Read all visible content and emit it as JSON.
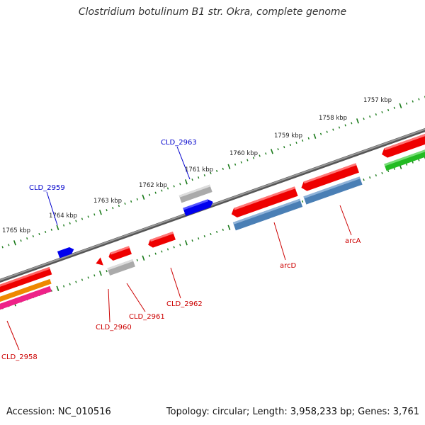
{
  "title": "Clostridium botulinum B1 str. Okra, complete genome",
  "footer": {
    "accession": "Accession: NC_010516",
    "topology": "Topology: circular; Length: 3,958,233 bp; Genes: 3,761"
  },
  "colors": {
    "backbone": "#7a7a7a",
    "tick": "#1a7a1a",
    "tick_label": "#222222",
    "forward_gene_label": "#0000cc",
    "reverse_gene_label": "#cc0000",
    "red": "#ee0000",
    "blue": "#0000ee",
    "grey": "#aaaaaa",
    "steelblue": "#4a7fb5",
    "green": "#22bb22",
    "orange": "#ee8800",
    "pink": "#ee2288"
  },
  "ticks": [
    "1765 kbp",
    "1764 kbp",
    "1763 kbp",
    "1762 kbp",
    "1761 kbp",
    "1760 kbp",
    "1759 kbp",
    "1758 kbp",
    "1757 kbp"
  ],
  "gene_labels": {
    "forward": [
      "CLD_2959",
      "CLD_2963"
    ],
    "reverse": [
      "CLD_2958",
      "CLD_2960",
      "CLD_2961",
      "CLD_2962",
      "arcD",
      "arcA"
    ]
  }
}
